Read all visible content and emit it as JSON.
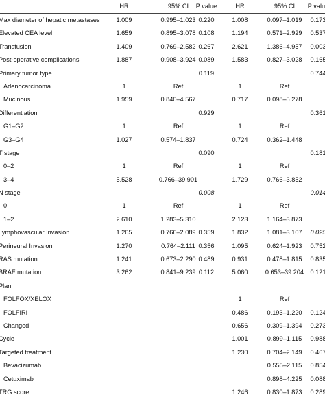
{
  "header": {
    "hr1": "HR",
    "ci1": "95% CI",
    "p1": "P value",
    "hr2": "HR",
    "ci2": "95% CI",
    "p2": "P value"
  },
  "rows": [
    {
      "label": "Max diameter of hepatic metastases",
      "hr1": "1.009",
      "ci1": "0.995–1.023",
      "p1": "0.220",
      "hr2": "1.008",
      "ci2": "0.097–1.019",
      "p2": "0.173"
    },
    {
      "label": "Elevated CEA level",
      "hr1": "1.659",
      "ci1": "0.895–3.078",
      "p1": "0.108",
      "hr2": "1.194",
      "ci2": "0.571–2.929",
      "p2": "0.537"
    },
    {
      "label": "Transfusion",
      "hr1": "1.409",
      "ci1": "0.769–2.582",
      "p1": "0.267",
      "hr2": "2.621",
      "ci2": "1.386–4.957",
      "p2": "0.003"
    },
    {
      "label": "Post-operative complications",
      "hr1": "1.887",
      "ci1": "0.908–3.924",
      "p1": "0.089",
      "hr2": "1.583",
      "ci2": "0.827–3.028",
      "p2": "0.165"
    },
    {
      "label": "Primary tumor type",
      "hr1": "",
      "ci1": "",
      "p1": "0.119",
      "hr2": "",
      "ci2": "",
      "p2": "0.744"
    },
    {
      "label": "Adenocarcinoma",
      "hr1": "1",
      "ci1": "Ref",
      "p1": "",
      "hr2": "1",
      "ci2": "Ref",
      "p2": ""
    },
    {
      "label": "Mucinous",
      "hr1": "1.959",
      "ci1": "0.840–4.567",
      "p1": "",
      "hr2": "0.717",
      "ci2": "0.098–5.278",
      "p2": ""
    },
    {
      "label": "Differentiation",
      "hr1": "",
      "ci1": "",
      "p1": "0.929",
      "hr2": "",
      "ci2": "",
      "p2": "0.361"
    },
    {
      "label": "G1–G2",
      "hr1": "1",
      "ci1": "Ref",
      "p1": "",
      "hr2": "1",
      "ci2": "Ref",
      "p2": ""
    },
    {
      "label": "G3–G4",
      "hr1": "1.027",
      "ci1": "0.574–1.837",
      "p1": "",
      "hr2": "0.724",
      "ci2": "0.362–1.448",
      "p2": ""
    },
    {
      "label": "T stage",
      "hr1": "",
      "ci1": "",
      "p1": "0.090",
      "hr2": "",
      "ci2": "",
      "p2": "0.181"
    },
    {
      "label": "0–2",
      "hr1": "1",
      "ci1": "Ref",
      "p1": "",
      "hr2": "1",
      "ci2": "Ref",
      "p2": ""
    },
    {
      "label": "3–4",
      "hr1": "5.528",
      "ci1": "0.766–39.901",
      "p1": "",
      "hr2": "1.729",
      "ci2": "0.766–3.852",
      "p2": ""
    },
    {
      "label": "N stage",
      "hr1": "",
      "ci1": "",
      "p1": "0.008",
      "hr2": "",
      "ci2": "",
      "p2": "0.014"
    },
    {
      "label": "0",
      "hr1": "1",
      "ci1": "Ref",
      "p1": "",
      "hr2": "1",
      "ci2": "Ref",
      "p2": ""
    },
    {
      "label": "1–2",
      "hr1": "2.610",
      "ci1": "1.283–5.310",
      "p1": "",
      "hr2": "2.123",
      "ci2": "1.164–3.873",
      "p2": ""
    },
    {
      "label": "Lymphovascular Invasion",
      "hr1": "1.265",
      "ci1": "0.766–2.089",
      "p1": "0.359",
      "hr2": "1.832",
      "ci2": "1.081–3.107",
      "p2": "0.025"
    },
    {
      "label": "Perineural Invasion",
      "hr1": "1.270",
      "ci1": "0.764–2.111",
      "p1": "0.356",
      "hr2": "1.095",
      "ci2": "0.624–1.923",
      "p2": "0.752"
    },
    {
      "label": "RAS mutation",
      "hr1": "1.241",
      "ci1": "0.673–2.290",
      "p1": "0.489",
      "hr2": "0.931",
      "ci2": "0.478–1.815",
      "p2": "0.835"
    },
    {
      "label": "BRAF mutation",
      "hr1": "3.262",
      "ci1": "0.841–9.239",
      "p1": "0.112",
      "hr2": "5.060",
      "ci2": "0.653–39.204",
      "p2": "0.121"
    },
    {
      "label": "Plan",
      "hr1": "",
      "ci1": "",
      "p1": "",
      "hr2": "",
      "ci2": "",
      "p2": ""
    },
    {
      "label": "FOLFOX/XELOX",
      "hr1": "",
      "ci1": "",
      "p1": "",
      "hr2": "1",
      "ci2": "Ref",
      "p2": ""
    },
    {
      "label": "FOLFIRI",
      "hr1": "",
      "ci1": "",
      "p1": "",
      "hr2": "0.486",
      "ci2": "0.193–1.220",
      "p2": "0.124"
    },
    {
      "label": "Changed",
      "hr1": "",
      "ci1": "",
      "p1": "",
      "hr2": "0.656",
      "ci2": "0.309–1.394",
      "p2": "0.273"
    },
    {
      "label": "Cycle",
      "hr1": "",
      "ci1": "",
      "p1": "",
      "hr2": "1.001",
      "ci2": "0.899–1.115",
      "p2": "0.988"
    },
    {
      "label": "Targeted treatment",
      "hr1": "",
      "ci1": "",
      "p1": "",
      "hr2": "1.230",
      "ci2": "0.704–2.149",
      "p2": "0.467"
    },
    {
      "label": "Bevacizumab",
      "hr1": "",
      "ci1": "",
      "p1": "",
      "hr2": "",
      "ci2": "0.555–2.115",
      "p2": "0.854"
    },
    {
      "label": "Cetuximab",
      "hr1": "",
      "ci1": "",
      "p1": "",
      "hr2": "",
      "ci2": "0.898–4.225",
      "p2": "0.088"
    },
    {
      "label": "TRG score",
      "hr1": "",
      "ci1": "",
      "p1": "",
      "hr2": "1.246",
      "ci2": "0.830–1.873",
      "p2": "0.289"
    }
  ],
  "indented_rows": [
    5,
    6,
    8,
    9,
    11,
    12,
    14,
    15,
    21,
    22,
    23,
    26,
    27
  ],
  "italic_cells": {
    "13": [
      "p1",
      "p2"
    ],
    "16": [
      "p2"
    ]
  }
}
